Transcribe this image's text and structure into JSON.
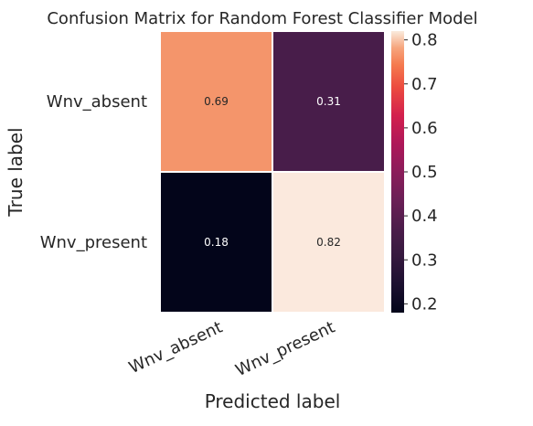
{
  "chart_data": {
    "type": "heatmap",
    "title": "Confusion Matrix for Random Forest Classifier Model",
    "xlabel": "Predicted label",
    "ylabel": "True label",
    "x_categories": [
      "Wnv_absent",
      "Wnv_present"
    ],
    "y_categories": [
      "Wnv_absent",
      "Wnv_present"
    ],
    "values": [
      [
        0.69,
        0.31
      ],
      [
        0.18,
        0.82
      ]
    ],
    "value_labels": [
      [
        "0.69",
        "0.31"
      ],
      [
        "0.18",
        "0.82"
      ]
    ],
    "colorbar": {
      "range": [
        0.18,
        0.82
      ],
      "ticks": [
        0.2,
        0.3,
        0.4,
        0.5,
        0.6,
        0.7,
        0.8
      ],
      "tick_labels": [
        "0.2",
        "0.3",
        "0.4",
        "0.5",
        "0.6",
        "0.7",
        "0.8"
      ]
    },
    "colormap": "rocket",
    "cell_colors": [
      [
        "#f4956b",
        "#481d4a"
      ],
      [
        "#03051a",
        "#fbe9dd"
      ]
    ],
    "grid": false,
    "legend": "colorbar-right"
  }
}
